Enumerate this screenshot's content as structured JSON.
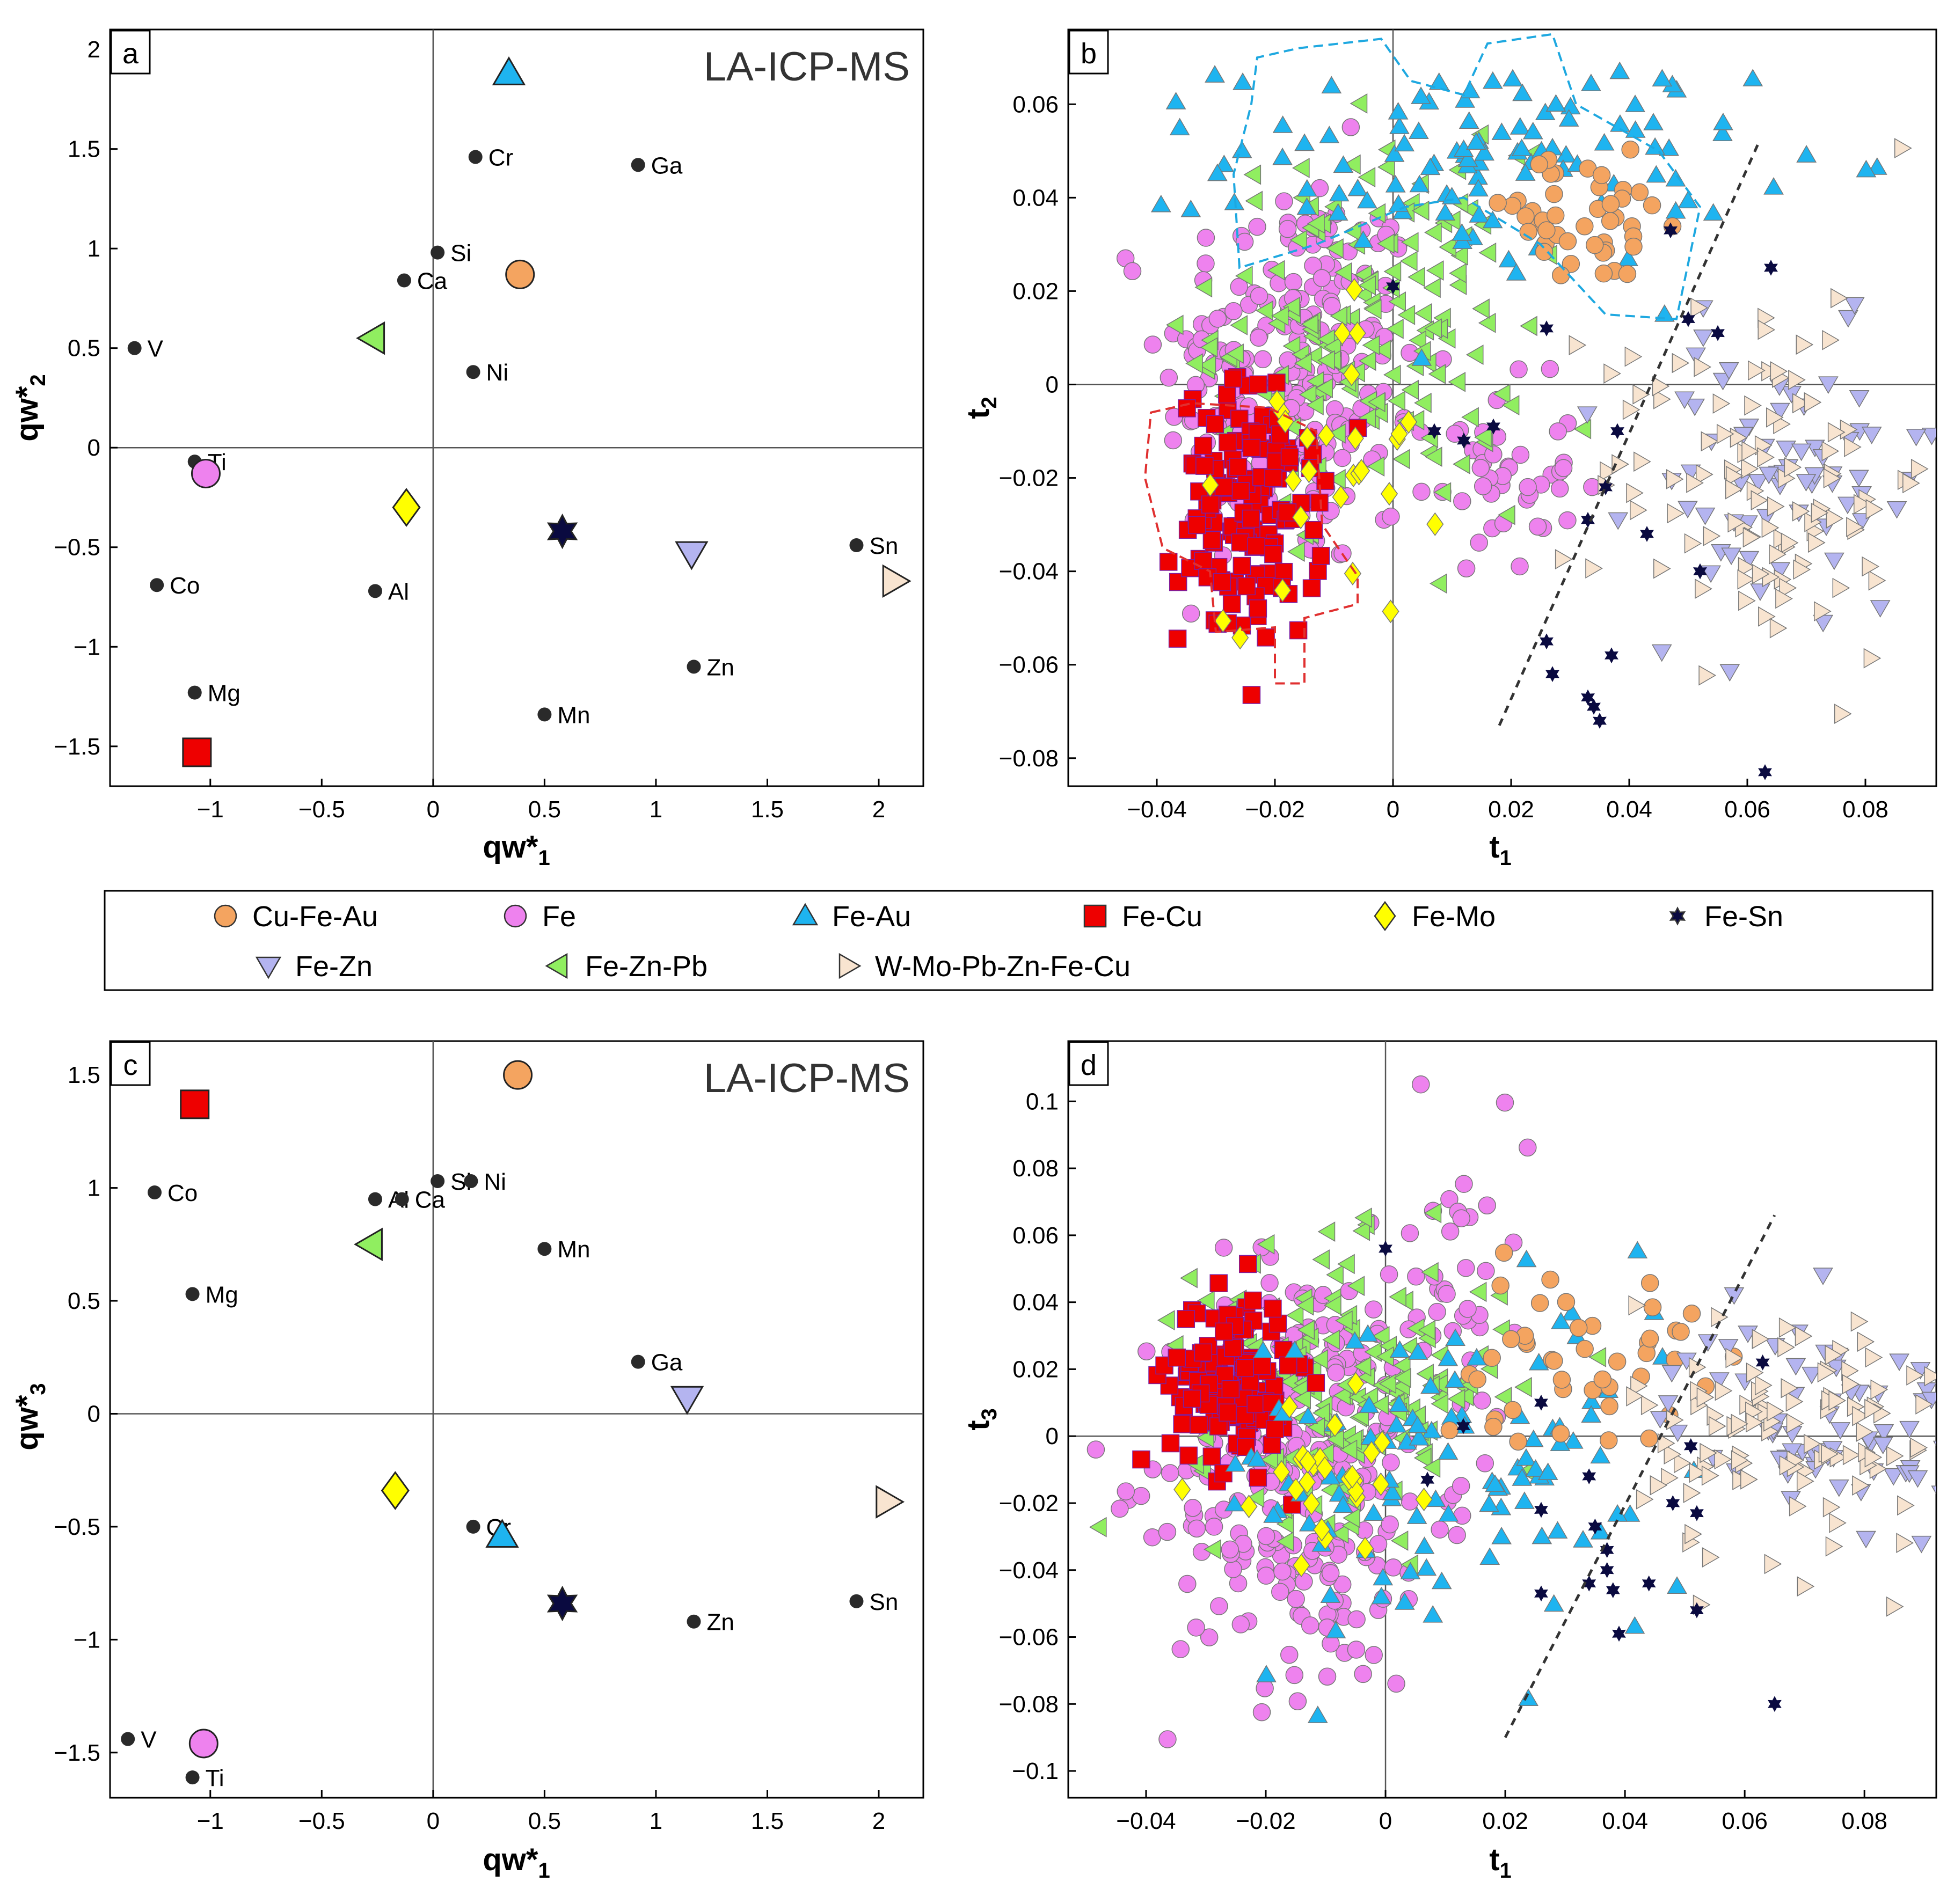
{
  "colors": {
    "Cu-Fe-Au": "#F4A460",
    "Fe": "#EE82EE",
    "Fe-Au": "#1EB4F0",
    "Fe-Cu": "#EE0000",
    "Fe-Mo": "#FFFF00",
    "Fe-Sn": "#0A0A40",
    "Fe-Zn": "#B4B4F0",
    "Fe-Zn-Pb": "#90EE60",
    "W-Mo-Pb-Zn-Fe-Cu": "#F8E4D0",
    "variable": "#2A2A2A",
    "hull_fe_au": "#1EA8E0",
    "hull_fe_cu": "#E03030",
    "trend_line": "#333333"
  },
  "legend": {
    "items": [
      {
        "label": "Cu-Fe-Au",
        "marker": "circle"
      },
      {
        "label": "Fe",
        "marker": "circle"
      },
      {
        "label": "Fe-Au",
        "marker": "triangle-up"
      },
      {
        "label": "Fe-Cu",
        "marker": "square"
      },
      {
        "label": "Fe-Mo",
        "marker": "diamond"
      },
      {
        "label": "Fe-Sn",
        "marker": "star"
      },
      {
        "label": "Fe-Zn",
        "marker": "triangle-down"
      },
      {
        "label": "Fe-Zn-Pb",
        "marker": "triangle-left"
      },
      {
        "label": "W-Mo-Pb-Zn-Fe-Cu",
        "marker": "triangle-right"
      }
    ]
  },
  "chart_data": [
    {
      "panel": "a",
      "type": "scatter",
      "label": "LA-ICP-MS",
      "xlabel": "qw*1",
      "ylabel": "qw*2",
      "xlim": [
        -1.45,
        2.2
      ],
      "ylim": [
        -1.7,
        2.1
      ],
      "xticks": [
        "-1",
        "-0.5",
        "0",
        "0.5",
        "1",
        "1.5",
        "2"
      ],
      "xtick_values": [
        -1,
        -0.5,
        0,
        0.5,
        1,
        1.5,
        2
      ],
      "yticks": [
        "2",
        "1.5",
        "1",
        "0.5",
        "0",
        "-0.5",
        "-1",
        "-1.5"
      ],
      "ytick_values": [
        2,
        1.5,
        1,
        0.5,
        0,
        -0.5,
        -1,
        -1.5
      ],
      "variables": [
        {
          "name": "Cr",
          "x": 0.19,
          "y": 1.46
        },
        {
          "name": "Ga",
          "x": 0.92,
          "y": 1.42
        },
        {
          "name": "Si",
          "x": 0.02,
          "y": 0.98
        },
        {
          "name": "Ca",
          "x": -0.13,
          "y": 0.84
        },
        {
          "name": "V",
          "x": -1.34,
          "y": 0.5
        },
        {
          "name": "Ni",
          "x": 0.18,
          "y": 0.38
        },
        {
          "name": "Ti",
          "x": -1.07,
          "y": -0.07
        },
        {
          "name": "Sn",
          "x": 1.9,
          "y": -0.49
        },
        {
          "name": "Co",
          "x": -1.24,
          "y": -0.69
        },
        {
          "name": "Al",
          "x": -0.26,
          "y": -0.72
        },
        {
          "name": "Zn",
          "x": 1.17,
          "y": -1.1
        },
        {
          "name": "Mg",
          "x": -1.07,
          "y": -1.23
        },
        {
          "name": "Mn",
          "x": 0.5,
          "y": -1.34
        }
      ],
      "groups": [
        {
          "name": "Fe-Au",
          "x": 0.34,
          "y": 1.88
        },
        {
          "name": "Cu-Fe-Au",
          "x": 0.39,
          "y": 0.87
        },
        {
          "name": "Fe-Zn-Pb",
          "x": -0.27,
          "y": 0.55
        },
        {
          "name": "Fe",
          "x": -1.02,
          "y": -0.13
        },
        {
          "name": "Fe-Mo",
          "x": -0.12,
          "y": -0.3
        },
        {
          "name": "Fe-Sn",
          "x": 0.58,
          "y": -0.42
        },
        {
          "name": "Fe-Zn",
          "x": 1.16,
          "y": -0.53
        },
        {
          "name": "W-Mo-Pb-Zn-Fe-Cu",
          "x": 2.07,
          "y": -0.67
        },
        {
          "name": "Fe-Cu",
          "x": -1.06,
          "y": -1.53
        }
      ]
    },
    {
      "panel": "b",
      "type": "scatter",
      "xlabel": "t1",
      "ylabel": "t2",
      "xlim": [
        -0.055,
        0.092
      ],
      "ylim": [
        -0.086,
        0.076
      ],
      "xticks": [
        "-0.04",
        "-0.02",
        "0",
        "0.02",
        "0.04",
        "0.06",
        "0.08"
      ],
      "xtick_values": [
        -0.04,
        -0.02,
        0,
        0.02,
        0.04,
        0.06,
        0.08
      ],
      "yticks": [
        "0.06",
        "0.04",
        "0.02",
        "0",
        "-0.02",
        "-0.04",
        "-0.06",
        "-0.08"
      ],
      "ytick_values": [
        0.06,
        0.04,
        0.02,
        0,
        -0.02,
        -0.04,
        -0.06,
        -0.08
      ],
      "clusters": [
        {
          "name": "Fe",
          "n": 230,
          "cx": -0.017,
          "cy": 0.002,
          "sx": 0.011,
          "sy": 0.022
        },
        {
          "name": "Fe",
          "n": 45,
          "cx": 0.017,
          "cy": -0.02,
          "sx": 0.007,
          "sy": 0.01
        },
        {
          "name": "Fe-Zn-Pb",
          "n": 170,
          "cx": -0.004,
          "cy": 0.012,
          "sx": 0.013,
          "sy": 0.019
        },
        {
          "name": "Fe-Cu",
          "n": 140,
          "cx": -0.024,
          "cy": -0.028,
          "sx": 0.006,
          "sy": 0.014
        },
        {
          "name": "Fe-Au",
          "n": 110,
          "cx": 0.016,
          "cy": 0.048,
          "sx": 0.022,
          "sy": 0.011
        },
        {
          "name": "Cu-Fe-Au",
          "n": 45,
          "cx": 0.032,
          "cy": 0.035,
          "sx": 0.011,
          "sy": 0.007
        },
        {
          "name": "Fe-Mo",
          "n": 28,
          "cx": -0.01,
          "cy": -0.012,
          "sx": 0.009,
          "sy": 0.02
        },
        {
          "name": "Fe-Zn",
          "n": 70,
          "cx": 0.066,
          "cy": -0.022,
          "sx": 0.013,
          "sy": 0.016
        },
        {
          "name": "W-Mo-Pb-Zn-Fe-Cu",
          "n": 110,
          "cx": 0.063,
          "cy": -0.018,
          "sx": 0.014,
          "sy": 0.02
        }
      ],
      "fe_sn_points": [
        [
          0,
          0.021
        ],
        [
          0.007,
          -0.01
        ],
        [
          0.012,
          -0.012
        ],
        [
          0.017,
          -0.009
        ],
        [
          0.026,
          0.012
        ],
        [
          0.033,
          -0.029
        ],
        [
          0.036,
          -0.022
        ],
        [
          0.038,
          -0.01
        ],
        [
          0.043,
          -0.032
        ],
        [
          0.047,
          0.033
        ],
        [
          0.05,
          0.014
        ],
        [
          0.055,
          0.011
        ],
        [
          0.052,
          -0.04
        ],
        [
          0.026,
          -0.055
        ],
        [
          0.027,
          -0.062
        ],
        [
          0.033,
          -0.067
        ],
        [
          0.035,
          -0.072
        ],
        [
          0.037,
          -0.058
        ],
        [
          0.034,
          -0.069
        ],
        [
          0.063,
          -0.083
        ],
        [
          0.064,
          0.025
        ]
      ],
      "hull_fe_au": [
        [
          -0.016,
          0.072
        ],
        [
          -0.002,
          0.074
        ],
        [
          0.003,
          0.065
        ],
        [
          0.012,
          0.062
        ],
        [
          0.016,
          0.073
        ],
        [
          0.027,
          0.075
        ],
        [
          0.031,
          0.06
        ],
        [
          0.045,
          0.05
        ],
        [
          0.052,
          0.038
        ],
        [
          0.048,
          0.014
        ],
        [
          0.036,
          0.015
        ],
        [
          0.025,
          0.03
        ],
        [
          0.012,
          0.04
        ],
        [
          0.002,
          0.038
        ],
        [
          -0.013,
          0.03
        ],
        [
          -0.026,
          0.025
        ],
        [
          -0.027,
          0.045
        ],
        [
          -0.024,
          0.06
        ],
        [
          -0.023,
          0.07
        ]
      ],
      "hull_fe_cu": [
        [
          -0.041,
          -0.006
        ],
        [
          -0.034,
          -0.004
        ],
        [
          -0.021,
          -0.005
        ],
        [
          -0.013,
          -0.01
        ],
        [
          -0.012,
          -0.03
        ],
        [
          -0.006,
          -0.041
        ],
        [
          -0.006,
          -0.047
        ],
        [
          -0.015,
          -0.05
        ],
        [
          -0.015,
          -0.064
        ],
        [
          -0.02,
          -0.064
        ],
        [
          -0.02,
          -0.052
        ],
        [
          -0.03,
          -0.053
        ],
        [
          -0.031,
          -0.04
        ],
        [
          -0.039,
          -0.035
        ],
        [
          -0.042,
          -0.02
        ]
      ],
      "trend_line": [
        [
          0.018,
          -0.073
        ],
        [
          0.062,
          0.052
        ]
      ]
    },
    {
      "panel": "c",
      "type": "scatter",
      "label": "LA-ICP-MS",
      "xlabel": "qw*1",
      "ylabel": "qw*3",
      "xlim": [
        -1.45,
        2.2
      ],
      "ylim": [
        -1.7,
        1.65
      ],
      "xticks": [
        "-1",
        "-0.5",
        "0",
        "0.5",
        "1",
        "1.5",
        "2"
      ],
      "xtick_values": [
        -1,
        -0.5,
        0,
        0.5,
        1,
        1.5,
        2
      ],
      "yticks": [
        "1.5",
        "1",
        "0.5",
        "0",
        "-0.5",
        "-1",
        "-1.5"
      ],
      "ytick_values": [
        1.5,
        1,
        0.5,
        0,
        -0.5,
        -1,
        -1.5
      ],
      "variables": [
        {
          "name": "Co",
          "x": -1.25,
          "y": 0.98
        },
        {
          "name": "Si",
          "x": 0.02,
          "y": 1.03
        },
        {
          "name": "Ni",
          "x": 0.17,
          "y": 1.03
        },
        {
          "name": "Al",
          "x": -0.26,
          "y": 0.95
        },
        {
          "name": "Ca",
          "x": -0.14,
          "y": 0.95
        },
        {
          "name": "Mn",
          "x": 0.5,
          "y": 0.73
        },
        {
          "name": "Mg",
          "x": -1.08,
          "y": 0.53
        },
        {
          "name": "Ga",
          "x": 0.92,
          "y": 0.23
        },
        {
          "name": "Cr",
          "x": 0.18,
          "y": -0.5
        },
        {
          "name": "Sn",
          "x": 1.9,
          "y": -0.83
        },
        {
          "name": "Zn",
          "x": 1.17,
          "y": -0.92
        },
        {
          "name": "V",
          "x": -1.37,
          "y": -1.44
        },
        {
          "name": "Ti",
          "x": -1.08,
          "y": -1.61
        }
      ],
      "groups": [
        {
          "name": "Cu-Fe-Au",
          "x": 0.38,
          "y": 1.5
        },
        {
          "name": "Fe-Cu",
          "x": -1.07,
          "y": 1.37
        },
        {
          "name": "Fe-Zn-Pb",
          "x": -0.28,
          "y": 0.75
        },
        {
          "name": "Fe-Zn",
          "x": 1.14,
          "y": 0.07
        },
        {
          "name": "Fe-Mo",
          "x": -0.17,
          "y": -0.34
        },
        {
          "name": "W-Mo-Pb-Zn-Fe-Cu",
          "x": 2.04,
          "y": -0.39
        },
        {
          "name": "Fe-Au",
          "x": 0.31,
          "y": -0.54
        },
        {
          "name": "Fe-Sn",
          "x": 0.58,
          "y": -0.84
        },
        {
          "name": "Fe",
          "x": -1.03,
          "y": -1.46
        }
      ]
    },
    {
      "panel": "d",
      "type": "scatter",
      "xlabel": "t1",
      "ylabel": "t3",
      "xlim": [
        -0.053,
        0.092
      ],
      "ylim": [
        -0.108,
        0.118
      ],
      "xticks": [
        "-0.04",
        "-0.02",
        "0",
        "0.02",
        "0.04",
        "0.06",
        "0.08"
      ],
      "xtick_values": [
        -0.04,
        -0.02,
        0,
        0.02,
        0.04,
        0.06,
        0.08
      ],
      "yticks": [
        "0.1",
        "0.08",
        "0.06",
        "0.04",
        "0.02",
        "0",
        "-0.02",
        "-0.04",
        "-0.06",
        "-0.08",
        "-0.1"
      ],
      "ytick_values": [
        0.1,
        0.08,
        0.06,
        0.04,
        0.02,
        0,
        -0.02,
        -0.04,
        -0.06,
        -0.08,
        -0.1
      ],
      "clusters": [
        {
          "name": "Fe",
          "n": 230,
          "cx": -0.014,
          "cy": -0.012,
          "sx": 0.011,
          "sy": 0.033
        },
        {
          "name": "Fe",
          "n": 50,
          "cx": 0.01,
          "cy": 0.04,
          "sx": 0.007,
          "sy": 0.03
        },
        {
          "name": "Fe-Zn-Pb",
          "n": 170,
          "cx": -0.006,
          "cy": 0.015,
          "sx": 0.013,
          "sy": 0.02
        },
        {
          "name": "Fe-Cu",
          "n": 140,
          "cx": -0.026,
          "cy": 0.017,
          "sx": 0.005,
          "sy": 0.013
        },
        {
          "name": "Fe-Au",
          "n": 110,
          "cx": 0.012,
          "cy": -0.012,
          "sx": 0.02,
          "sy": 0.027
        },
        {
          "name": "Cu-Fe-Au",
          "n": 45,
          "cx": 0.03,
          "cy": 0.024,
          "sx": 0.011,
          "sy": 0.013
        },
        {
          "name": "Fe-Mo",
          "n": 28,
          "cx": -0.01,
          "cy": -0.013,
          "sx": 0.008,
          "sy": 0.012
        },
        {
          "name": "Fe-Zn",
          "n": 70,
          "cx": 0.072,
          "cy": 0.005,
          "sx": 0.012,
          "sy": 0.015
        },
        {
          "name": "W-Mo-Pb-Zn-Fe-Cu",
          "n": 110,
          "cx": 0.068,
          "cy": 0.002,
          "sx": 0.013,
          "sy": 0.02
        }
      ],
      "fe_sn_points": [
        [
          0,
          0.056
        ],
        [
          0.007,
          -0.013
        ],
        [
          0.013,
          0.003
        ],
        [
          0.026,
          0.01
        ],
        [
          0.026,
          -0.047
        ],
        [
          0.026,
          -0.022
        ],
        [
          0.034,
          -0.012
        ],
        [
          0.034,
          -0.044
        ],
        [
          0.035,
          -0.027
        ],
        [
          0.037,
          -0.034
        ],
        [
          0.038,
          -0.046
        ],
        [
          0.037,
          -0.04
        ],
        [
          0.039,
          -0.059
        ],
        [
          0.044,
          -0.044
        ],
        [
          0.048,
          -0.02
        ],
        [
          0.052,
          -0.023
        ],
        [
          0.051,
          -0.003
        ],
        [
          0.052,
          -0.052
        ],
        [
          0.063,
          0.022
        ],
        [
          0.065,
          -0.08
        ]
      ],
      "trend_line": [
        [
          0.02,
          -0.09
        ],
        [
          0.065,
          0.066
        ]
      ]
    }
  ]
}
